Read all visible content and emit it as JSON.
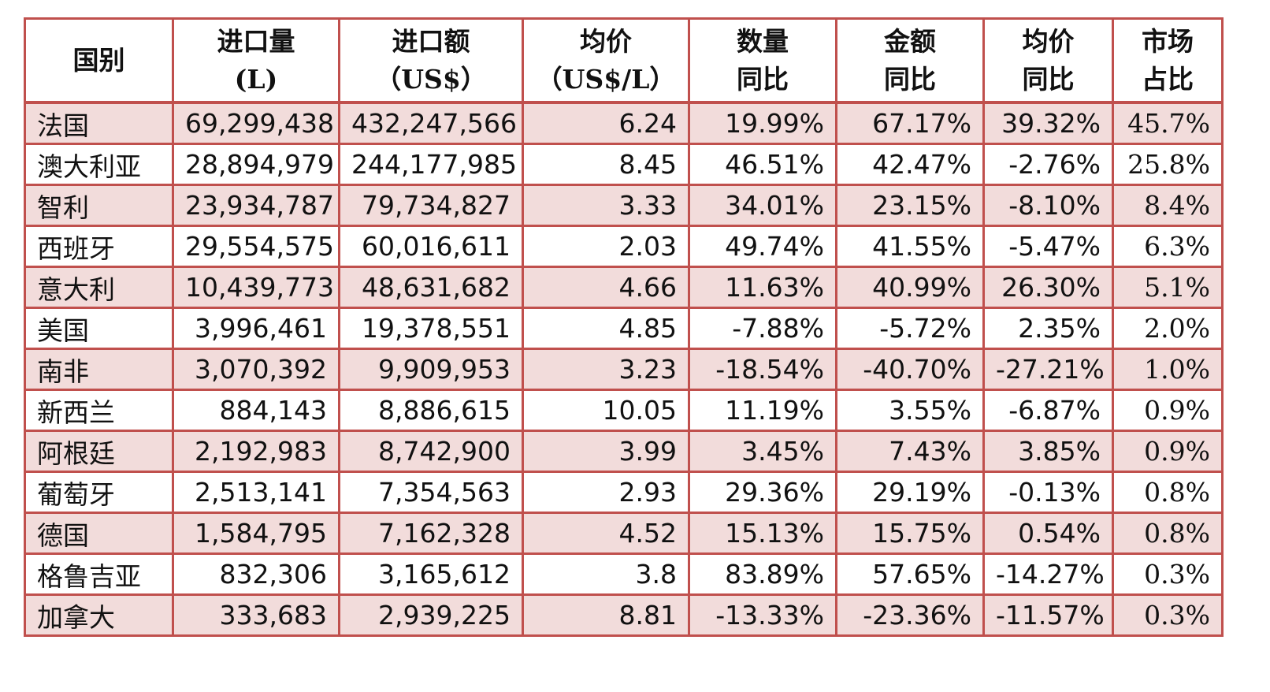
{
  "table": {
    "headers": [
      {
        "line1": "国别",
        "line2": ""
      },
      {
        "line1": "进口量",
        "line2": "(L)"
      },
      {
        "line1": "进口额",
        "line2": "（US$）"
      },
      {
        "line1": "均价",
        "line2": "（US$/L）"
      },
      {
        "line1": "数量",
        "line2": "同比"
      },
      {
        "line1": "金额",
        "line2": "同比"
      },
      {
        "line1": "均价",
        "line2": "同比"
      },
      {
        "line1": "市场",
        "line2": "占比"
      }
    ],
    "rows": [
      [
        "法国",
        "69,299,438",
        "432,247,566",
        "6.24",
        "19.99%",
        "67.17%",
        "39.32%",
        "45.7%"
      ],
      [
        "澳大利亚",
        "28,894,979",
        "244,177,985",
        "8.45",
        "46.51%",
        "42.47%",
        "-2.76%",
        "25.8%"
      ],
      [
        "智利",
        "23,934,787",
        "79,734,827",
        "3.33",
        "34.01%",
        "23.15%",
        "-8.10%",
        "8.4%"
      ],
      [
        "西班牙",
        "29,554,575",
        "60,016,611",
        "2.03",
        "49.74%",
        "41.55%",
        "-5.47%",
        "6.3%"
      ],
      [
        "意大利",
        "10,439,773",
        "48,631,682",
        "4.66",
        "11.63%",
        "40.99%",
        "26.30%",
        "5.1%"
      ],
      [
        "美国",
        "3,996,461",
        "19,378,551",
        "4.85",
        "-7.88%",
        "-5.72%",
        "2.35%",
        "2.0%"
      ],
      [
        "南非",
        "3,070,392",
        "9,909,953",
        "3.23",
        "-18.54%",
        "-40.70%",
        "-27.21%",
        "1.0%"
      ],
      [
        "新西兰",
        "884,143",
        "8,886,615",
        "10.05",
        "11.19%",
        "3.55%",
        "-6.87%",
        "0.9%"
      ],
      [
        "阿根廷",
        "2,192,983",
        "8,742,900",
        "3.99",
        "3.45%",
        "7.43%",
        "3.85%",
        "0.9%"
      ],
      [
        "葡萄牙",
        "2,513,141",
        "7,354,563",
        "2.93",
        "29.36%",
        "29.19%",
        "-0.13%",
        "0.8%"
      ],
      [
        "德国",
        "1,584,795",
        "7,162,328",
        "4.52",
        "15.13%",
        "15.75%",
        "0.54%",
        "0.8%"
      ],
      [
        "格鲁吉亚",
        "832,306",
        "3,165,612",
        "3.8",
        "83.89%",
        "57.65%",
        "-14.27%",
        "0.3%"
      ],
      [
        "加拿大",
        "333,683",
        "2,939,225",
        "8.81",
        "-13.33%",
        "-23.36%",
        "-11.57%",
        "0.3%"
      ]
    ]
  },
  "colors": {
    "border": "#c0504d",
    "shaded_row": "#f2dcdb",
    "plain_row": "#ffffff"
  }
}
